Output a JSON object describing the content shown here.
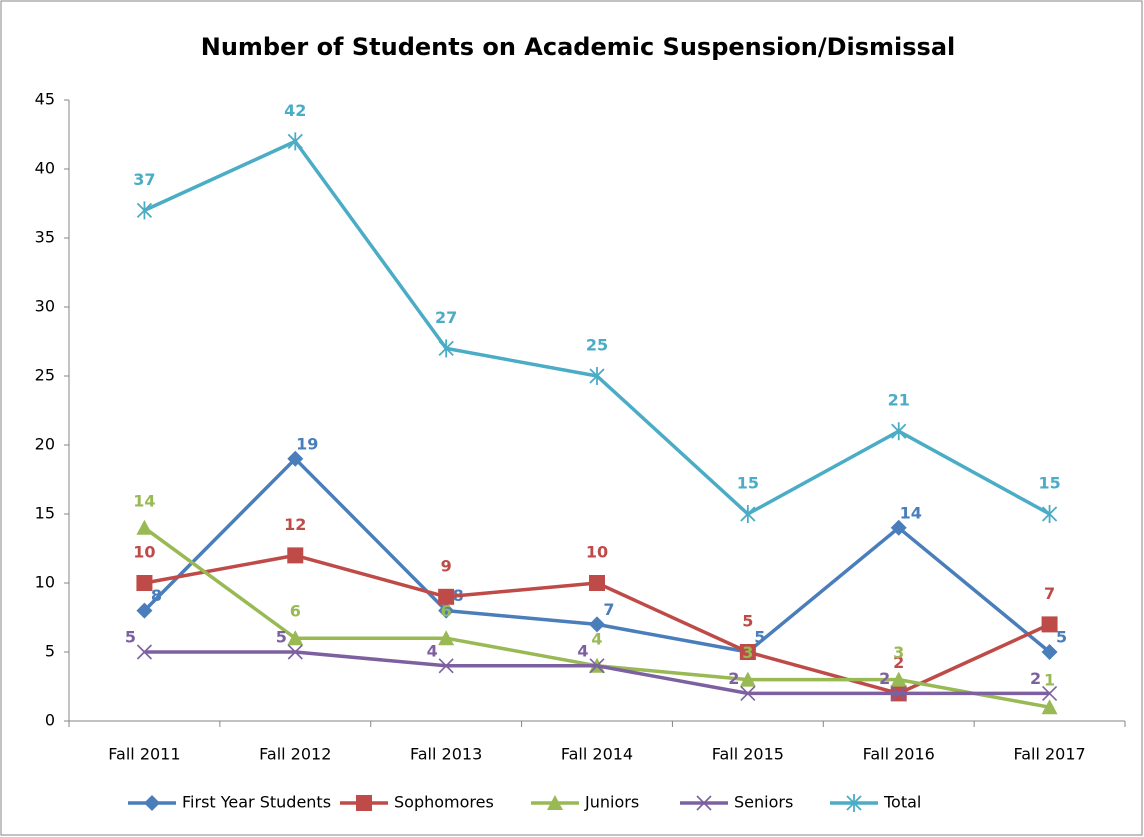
{
  "chart_data": {
    "type": "line",
    "title": "Number of Students on Academic Suspension/Dismissal",
    "categories": [
      "Fall 2011",
      "Fall 2012",
      "Fall 2013",
      "Fall 2014",
      "Fall 2015",
      "Fall 2016",
      "Fall 2017"
    ],
    "series": [
      {
        "name": "First Year Students",
        "color": "#4a7ebb",
        "values": [
          8,
          19,
          8,
          7,
          5,
          14,
          5
        ]
      },
      {
        "name": "Sophomores",
        "color": "#be4b48",
        "values": [
          10,
          12,
          9,
          10,
          5,
          2,
          7
        ]
      },
      {
        "name": "Juniors",
        "color": "#98b954",
        "values": [
          14,
          6,
          6,
          4,
          3,
          3,
          1
        ]
      },
      {
        "name": "Seniors",
        "color": "#7d60a0",
        "values": [
          5,
          5,
          4,
          4,
          2,
          2,
          2
        ]
      },
      {
        "name": "Total",
        "color": "#4bacc6",
        "values": [
          37,
          42,
          27,
          25,
          15,
          21,
          15
        ]
      }
    ],
    "ylim": [
      0,
      45
    ],
    "yticks": [
      0,
      5,
      10,
      15,
      20,
      25,
      30,
      35,
      40,
      45
    ],
    "legend": "bottom"
  }
}
